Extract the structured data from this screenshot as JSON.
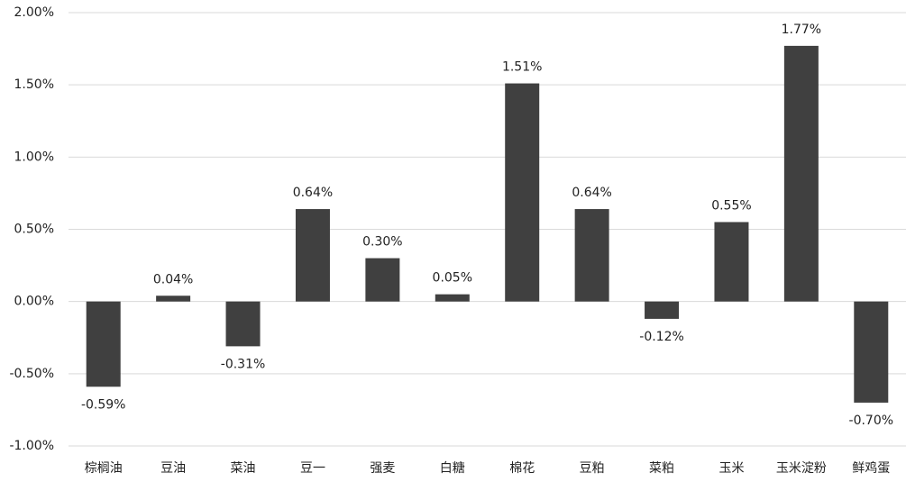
{
  "chart_data": {
    "type": "bar",
    "categories": [
      "棕榈油",
      "豆油",
      "菜油",
      "豆一",
      "强麦",
      "白糖",
      "棉花",
      "豆粕",
      "菜粕",
      "玉米",
      "玉米淀粉",
      "鲜鸡蛋"
    ],
    "values": [
      -0.59,
      0.04,
      -0.31,
      0.64,
      0.3,
      0.05,
      1.51,
      0.64,
      -0.12,
      0.55,
      1.77,
      -0.7
    ],
    "value_labels": [
      "-0.59%",
      "0.04%",
      "-0.31%",
      "0.64%",
      "0.30%",
      "0.05%",
      "1.51%",
      "0.64%",
      "-0.12%",
      "0.55%",
      "1.77%",
      "-0.70%"
    ],
    "color": "#404040",
    "ylim": [
      -1,
      2
    ],
    "yticks": [
      {
        "value": -1,
        "label": "-1.00%"
      },
      {
        "value": -0.5,
        "label": "-0.50%"
      },
      {
        "value": 0,
        "label": "0.00%"
      },
      {
        "value": 0.5,
        "label": "0.50%"
      },
      {
        "value": 1,
        "label": "1.00%"
      },
      {
        "value": 1.5,
        "label": "1.50%"
      },
      {
        "value": 2,
        "label": "2.00%"
      }
    ],
    "grid": true
  }
}
